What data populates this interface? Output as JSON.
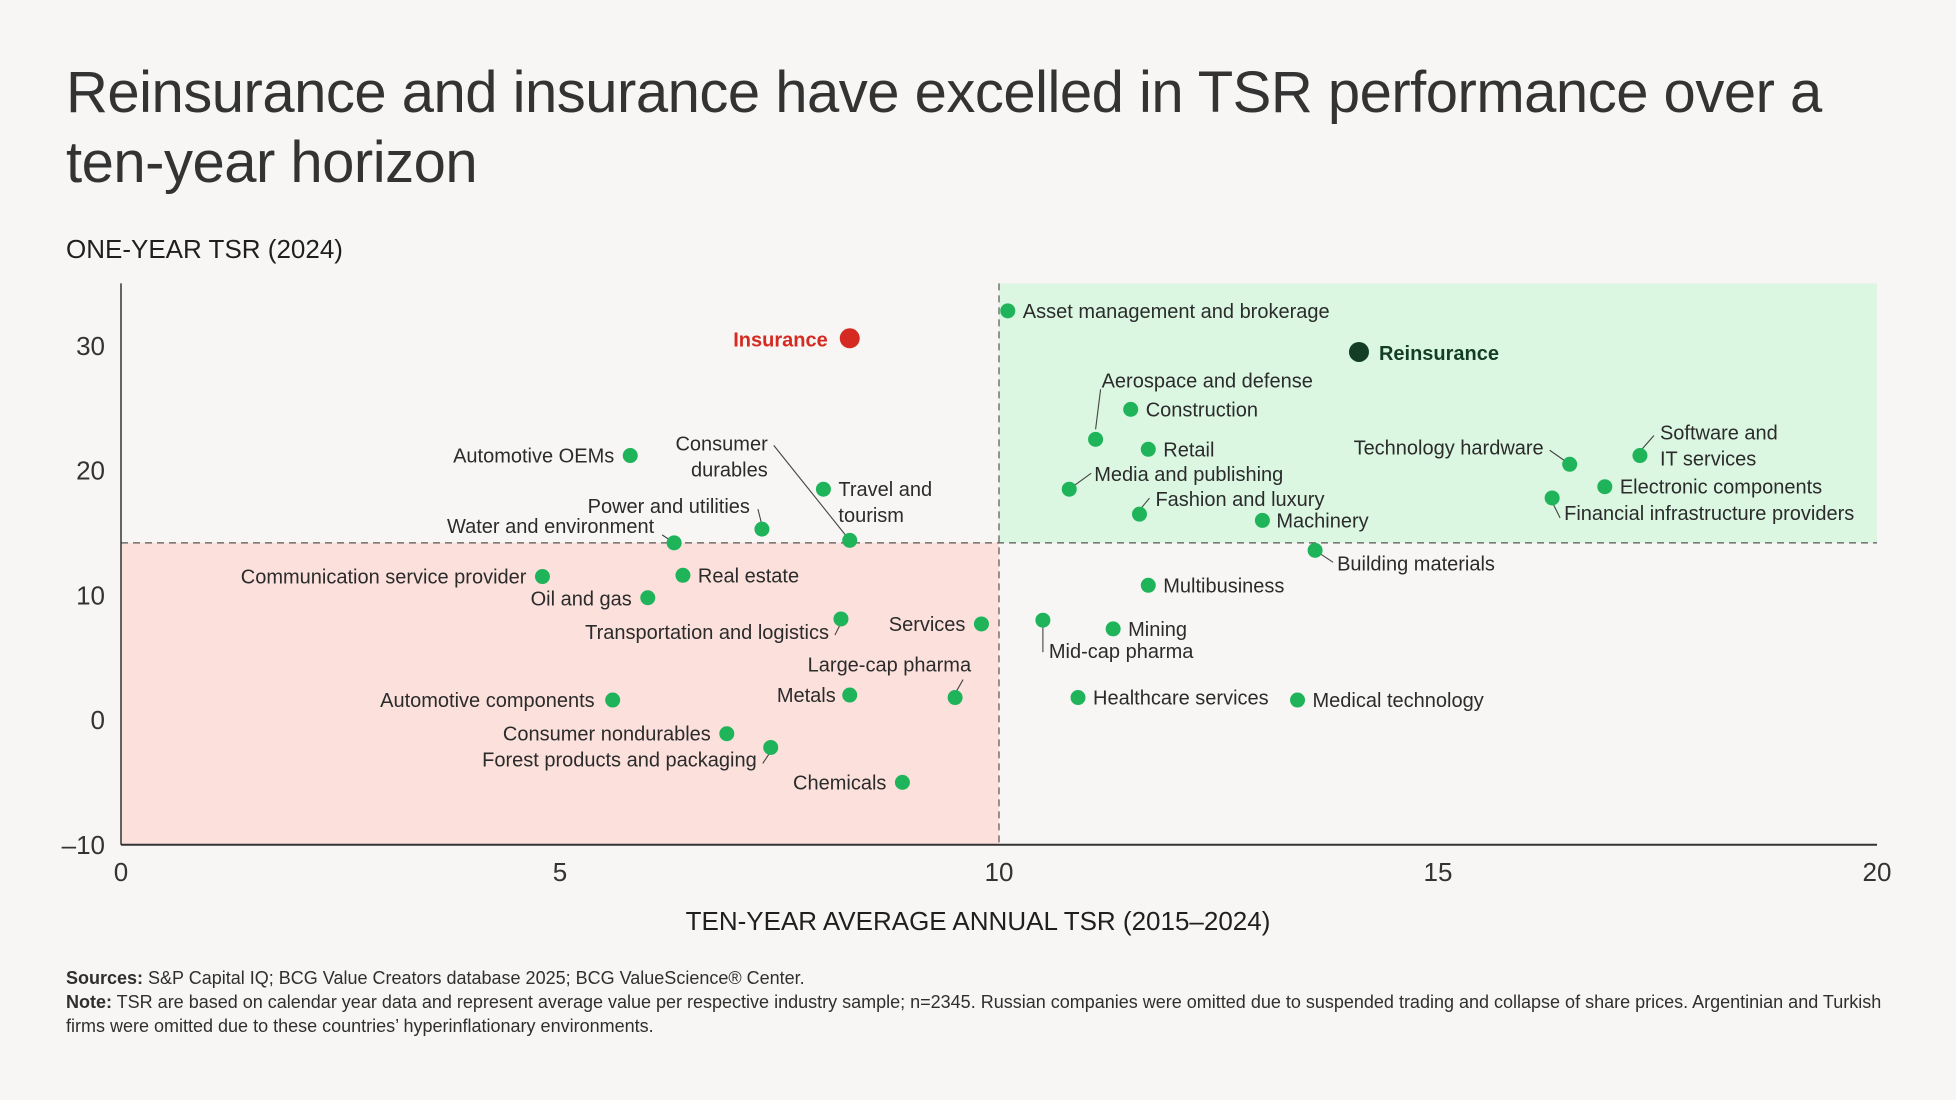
{
  "title": "Reinsurance and insurance have excelled in TSR performance over a ten-year horizon",
  "footnotes": {
    "sources_label": "Sources:",
    "sources_text": " S&P Capital IQ; BCG Value Creators database 2025; BCG ValueScience® Center.",
    "note_label": "Note:",
    "note_text": " TSR are based on calendar year data and represent average value per respective industry sample; n=2345. Russian companies were omitted due to suspended trading and collapse of share prices. Argentinian and Turkish firms were omitted due to these countries’ hyperinflationary environments."
  },
  "colors": {
    "point": "#1fb35a",
    "insurance": "#d42a21",
    "reinsurance": "#133d25",
    "quadrant_high": "#dbf7e2",
    "quadrant_low": "#fbe0dc"
  },
  "chart_data": {
    "type": "scatter",
    "title": "Reinsurance and insurance have excelled in TSR performance over a ten-year horizon",
    "xlabel": "TEN-YEAR AVERAGE ANNUAL TSR (2015–2024)",
    "ylabel": "ONE-YEAR TSR (2024)",
    "xlim": [
      0,
      20
    ],
    "ylim": [
      -10,
      35
    ],
    "xticks": [
      "0",
      "5",
      "10",
      "15",
      "20"
    ],
    "yticks": [
      "–10",
      "0",
      "10",
      "20",
      "30"
    ],
    "xtick_values": [
      0,
      5,
      10,
      15,
      20
    ],
    "ytick_values": [
      -10,
      0,
      10,
      20,
      30
    ],
    "grid": false,
    "reference_lines": {
      "x": 10,
      "y": 14.2
    },
    "quadrants": [
      {
        "name": "high-high",
        "x_range": [
          10,
          20
        ],
        "y_range": [
          14.2,
          35
        ],
        "color": "green"
      },
      {
        "name": "low-low",
        "x_range": [
          0,
          10
        ],
        "y_range": [
          -10,
          14.2
        ],
        "color": "red"
      }
    ],
    "points": [
      {
        "label": "Insurance",
        "x": 8.3,
        "y": 30.6,
        "style": "insurance"
      },
      {
        "label": "Reinsurance",
        "x": 14.1,
        "y": 29.5,
        "style": "reinsurance"
      },
      {
        "label": "Asset management and brokerage",
        "x": 10.1,
        "y": 32.8
      },
      {
        "label": "Aerospace and defense",
        "x": 11.1,
        "y": 22.5
      },
      {
        "label": "Construction",
        "x": 11.5,
        "y": 24.9
      },
      {
        "label": "Retail",
        "x": 11.7,
        "y": 21.7
      },
      {
        "label": "Media and publishing",
        "x": 10.8,
        "y": 18.5
      },
      {
        "label": "Fashion and luxury",
        "x": 11.6,
        "y": 16.5
      },
      {
        "label": "Machinery",
        "x": 13.0,
        "y": 16.0
      },
      {
        "label": "Building materials",
        "x": 13.6,
        "y": 13.6
      },
      {
        "label": "Technology hardware",
        "x": 16.5,
        "y": 20.5
      },
      {
        "label": "Software and IT services",
        "x": 17.3,
        "y": 21.2
      },
      {
        "label": "Electronic components",
        "x": 16.9,
        "y": 18.7
      },
      {
        "label": "Financial infrastructure providers",
        "x": 16.3,
        "y": 17.8
      },
      {
        "label": "Automotive OEMs",
        "x": 5.8,
        "y": 21.2
      },
      {
        "label": "Travel and tourism",
        "x": 8.0,
        "y": 18.5
      },
      {
        "label": "Consumer durables",
        "x": 8.3,
        "y": 14.4
      },
      {
        "label": "Power and utilities",
        "x": 7.3,
        "y": 15.3
      },
      {
        "label": "Water and environment",
        "x": 6.3,
        "y": 14.2
      },
      {
        "label": "Communication service provider",
        "x": 4.8,
        "y": 11.5
      },
      {
        "label": "Real estate",
        "x": 6.4,
        "y": 11.6
      },
      {
        "label": "Oil and gas",
        "x": 6.0,
        "y": 9.8
      },
      {
        "label": "Transportation and logistics",
        "x": 8.2,
        "y": 8.1
      },
      {
        "label": "Services",
        "x": 9.8,
        "y": 7.7
      },
      {
        "label": "Mid-cap pharma",
        "x": 10.5,
        "y": 8.0
      },
      {
        "label": "Mining",
        "x": 11.3,
        "y": 7.3
      },
      {
        "label": "Multibusiness",
        "x": 11.7,
        "y": 10.8
      },
      {
        "label": "Large-cap pharma",
        "x": 9.5,
        "y": 1.8
      },
      {
        "label": "Metals",
        "x": 8.3,
        "y": 2.0
      },
      {
        "label": "Automotive components",
        "x": 5.6,
        "y": 1.6
      },
      {
        "label": "Healthcare services",
        "x": 10.9,
        "y": 1.8
      },
      {
        "label": "Medical technology",
        "x": 13.4,
        "y": 1.6
      },
      {
        "label": "Consumer nondurables",
        "x": 6.9,
        "y": -1.1
      },
      {
        "label": "Forest products and packaging",
        "x": 7.4,
        "y": -2.2
      },
      {
        "label": "Chemicals",
        "x": 8.9,
        "y": -5.0
      }
    ]
  }
}
